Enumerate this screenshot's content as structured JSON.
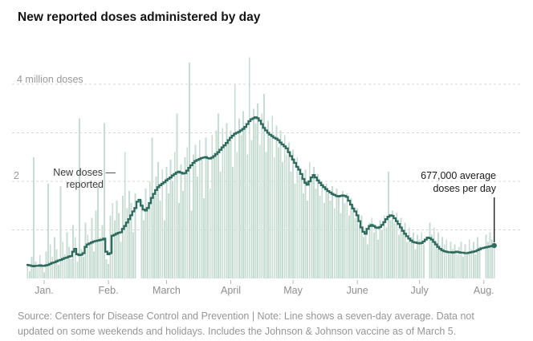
{
  "header": {
    "title": "New reported doses administered by day"
  },
  "colors": {
    "bars": "#c7dcd3",
    "line": "#2f6b5d",
    "gridline": "#d8d8d8",
    "tick": "#b5b5b5",
    "annotation_rule": "#121212",
    "end_dot": "#2f6b5d"
  },
  "y_axis": {
    "labels": [
      {
        "value": 4,
        "text": "4 million doses"
      },
      {
        "value": 2,
        "text": "2"
      }
    ],
    "gridline_values": [
      1,
      2,
      3,
      4
    ]
  },
  "annotations": {
    "new_doses": {
      "line1": "New doses —",
      "line2": "reported"
    },
    "average": {
      "line1": "677,000 average",
      "line2": "doses per day"
    }
  },
  "source": {
    "lines": [
      "Source: Centers for Disease Control and Prevention | Note: Line shows a seven-day average. Data not",
      "updated on some weekends and holidays. Includes the Johnson & Johnson vaccine as of March 5."
    ]
  },
  "chart_data": {
    "type": "bar+line",
    "title": "New reported doses administered by day",
    "unit": "million doses per day",
    "date_range": "late Dec. 2020 through early Aug. 2021, one value per day",
    "ylim": [
      0,
      4.6
    ],
    "legend": "Bars = new doses reported each day; dark line = seven-day average",
    "end_value_label": "677,000 average doses per day",
    "ticks": [
      {
        "index": 8,
        "label": "Jan."
      },
      {
        "index": 39,
        "label": "Feb."
      },
      {
        "index": 67,
        "label": "March"
      },
      {
        "index": 98,
        "label": "April"
      },
      {
        "index": 128,
        "label": "May"
      },
      {
        "index": 159,
        "label": "June"
      },
      {
        "index": 189,
        "label": "July"
      },
      {
        "index": 220,
        "label": "Aug."
      }
    ],
    "bars": [
      0.3,
      0.15,
      0.45,
      2.5,
      0.35,
      0.22,
      0.48,
      0.3,
      0.12,
      0.55,
      1.95,
      0.7,
      0.45,
      0.85,
      0.6,
      0.28,
      1.9,
      0.75,
      0.5,
      0.95,
      0.65,
      0.4,
      1.1,
      0.85,
      0.35,
      3.3,
      0.6,
      0.45,
      1.15,
      0.9,
      0.7,
      1.25,
      0.55,
      1.4,
      1.9,
      0.85,
      1.1,
      3.2,
      0.4,
      0.3,
      1.3,
      1.55,
      1.2,
      1.6,
      1.35,
      0.75,
      1.7,
      2.6,
      1.45,
      1.8,
      1.55,
      0.95,
      1.75,
      0.0,
      0.0,
      1.6,
      1.2,
      1.85,
      1.5,
      2.0,
      2.9,
      1.7,
      2.1,
      2.4,
      1.6,
      2.25,
      1.2,
      2.3,
      1.75,
      2.45,
      2.0,
      2.6,
      3.4,
      1.55,
      2.35,
      1.8,
      2.5,
      2.7,
      4.45,
      1.4,
      2.55,
      2.75,
      2.1,
      2.85,
      2.45,
      1.65,
      2.9,
      2.5,
      1.85,
      2.95,
      2.6,
      3.05,
      3.4,
      2.2,
      3.1,
      2.7,
      3.2,
      2.85,
      3.05,
      2.3,
      4.0,
      2.6,
      3.3,
      2.95,
      3.45,
      3.1,
      2.55,
      4.55,
      2.85,
      3.5,
      3.2,
      3.6,
      2.75,
      3.4,
      3.8,
      2.6,
      3.25,
      2.9,
      3.35,
      2.5,
      3.15,
      2.7,
      3.05,
      2.4,
      2.95,
      2.55,
      2.8,
      2.2,
      2.65,
      1.95,
      2.5,
      2.3,
      2.1,
      1.75,
      2.25,
      1.6,
      2.4,
      2.05,
      2.3,
      1.85,
      2.15,
      1.7,
      2.0,
      1.55,
      1.95,
      1.75,
      1.6,
      1.9,
      1.45,
      1.85,
      1.7,
      1.35,
      1.8,
      1.55,
      1.75,
      1.3,
      1.65,
      1.5,
      1.25,
      1.45,
      1.1,
      1.3,
      0.85,
      1.05,
      0.7,
      1.15,
      1.25,
      0.95,
      1.1,
      0.8,
      1.2,
      1.0,
      1.3,
      1.05,
      2.2,
      1.2,
      1.4,
      1.15,
      1.35,
      0.9,
      1.25,
      0.95,
      1.15,
      0.75,
      1.05,
      0.85,
      0.95,
      0.6,
      0.9,
      0.8,
      0.95,
      0.7,
      0.0,
      0.0,
      1.15,
      0.9,
      1.05,
      0.75,
      0.95,
      0.6,
      0.85,
      0.7,
      0.8,
      0.55,
      0.75,
      0.6,
      0.7,
      0.5,
      0.65,
      0.75,
      0.45,
      0.7,
      0.55,
      0.8,
      0.6,
      0.75,
      0.5,
      0.85,
      0.65,
      0.0,
      0.0,
      0.9,
      0.75,
      0.95,
      0.8,
      0.7
    ],
    "line_7day_avg": [
      0.28,
      0.27,
      0.26,
      0.25,
      0.26,
      0.26,
      0.27,
      0.26,
      0.26,
      0.27,
      0.28,
      0.3,
      0.32,
      0.33,
      0.35,
      0.37,
      0.38,
      0.4,
      0.42,
      0.43,
      0.45,
      0.46,
      0.55,
      0.61,
      0.5,
      0.48,
      0.49,
      0.52,
      0.65,
      0.7,
      0.72,
      0.74,
      0.76,
      0.77,
      0.78,
      0.79,
      0.8,
      0.82,
      0.55,
      0.5,
      0.52,
      0.88,
      0.9,
      0.92,
      0.94,
      0.95,
      1.02,
      1.08,
      1.15,
      1.22,
      1.3,
      1.38,
      1.45,
      1.58,
      1.62,
      1.5,
      1.42,
      1.4,
      1.45,
      1.55,
      1.66,
      1.74,
      1.82,
      1.88,
      1.92,
      1.95,
      1.98,
      2.02,
      2.05,
      2.08,
      2.12,
      2.15,
      2.18,
      2.2,
      2.18,
      2.16,
      2.17,
      2.22,
      2.28,
      2.33,
      2.38,
      2.42,
      2.44,
      2.46,
      2.48,
      2.49,
      2.5,
      2.48,
      2.47,
      2.49,
      2.52,
      2.56,
      2.6,
      2.65,
      2.7,
      2.74,
      2.79,
      2.85,
      2.9,
      2.94,
      2.98,
      3.0,
      3.02,
      3.05,
      3.08,
      3.12,
      3.18,
      3.24,
      3.28,
      3.3,
      3.32,
      3.3,
      3.25,
      3.18,
      3.1,
      3.05,
      3.0,
      2.96,
      2.93,
      2.9,
      2.88,
      2.85,
      2.8,
      2.76,
      2.72,
      2.68,
      2.6,
      2.52,
      2.45,
      2.38,
      2.3,
      2.24,
      2.15,
      2.05,
      1.97,
      1.93,
      2.0,
      2.08,
      2.13,
      2.08,
      2.02,
      1.97,
      1.92,
      1.88,
      1.84,
      1.8,
      1.77,
      1.74,
      1.72,
      1.7,
      1.69,
      1.7,
      1.71,
      1.7,
      1.68,
      1.6,
      1.52,
      1.44,
      1.38,
      1.3,
      1.18,
      1.05,
      0.96,
      0.92,
      1.02,
      1.08,
      1.1,
      1.08,
      1.05,
      1.04,
      1.06,
      1.1,
      1.16,
      1.22,
      1.27,
      1.3,
      1.29,
      1.24,
      1.18,
      1.12,
      1.05,
      0.98,
      0.92,
      0.87,
      0.82,
      0.78,
      0.75,
      0.74,
      0.73,
      0.72,
      0.73,
      0.76,
      0.8,
      0.84,
      0.83,
      0.8,
      0.75,
      0.7,
      0.65,
      0.61,
      0.58,
      0.56,
      0.55,
      0.54,
      0.54,
      0.53,
      0.54,
      0.55,
      0.54,
      0.53,
      0.53,
      0.52,
      0.52,
      0.53,
      0.54,
      0.55,
      0.56,
      0.58,
      0.6,
      0.62,
      0.63,
      0.64,
      0.65,
      0.66,
      0.67,
      0.677
    ]
  }
}
